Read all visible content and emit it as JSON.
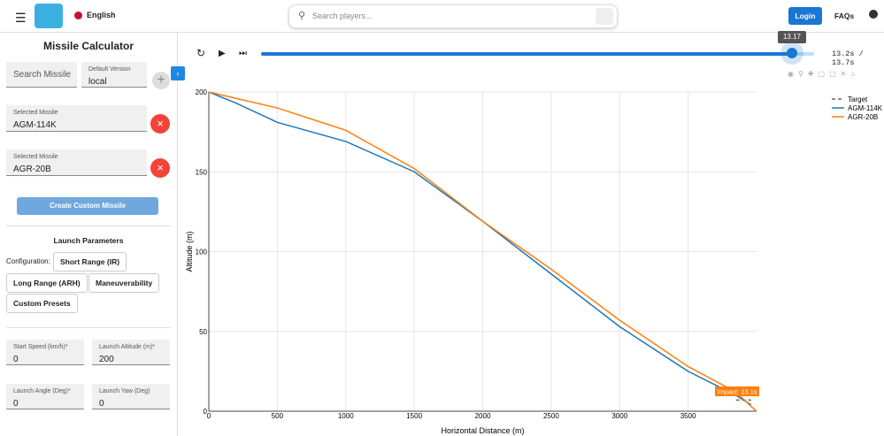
{
  "header": {
    "language": "English",
    "search_placeholder": "Search players...",
    "login": "Login",
    "faqs": "FAQs"
  },
  "sidebar": {
    "title": "Missile Calculator",
    "search_missile": "Search Missile",
    "default_version_label": "Default Version",
    "default_version": "local",
    "selected": [
      {
        "label": "Selected Missile",
        "value": "AGM-114K"
      },
      {
        "label": "Selected Missile",
        "value": "AGR-20B"
      }
    ],
    "create_button": "Create Custom Missile",
    "launch_title": "Launch Parameters",
    "configuration_label": "Configuration:",
    "presets": [
      "Short Range (IR)",
      "Long Range (ARH)",
      "Maneuverability",
      "Custom Presets"
    ],
    "fields": [
      {
        "label": "Start Speed (km/h)*",
        "value": "0"
      },
      {
        "label": "Launch Altitude (m)*",
        "value": "200"
      },
      {
        "label": "Launch Angle (Deg)*",
        "value": "0"
      },
      {
        "label": "Launch Yaw (Deg)",
        "value": "0"
      }
    ]
  },
  "player": {
    "tooltip": 13.17,
    "time": "13.2s / 13.7s"
  },
  "chart_data": {
    "type": "line",
    "x_label": "Horizontal Distance (m)",
    "y_label": "Altitude (m)",
    "annotation": "Impact: 13.1s",
    "x": [
      0,
      200,
      500,
      1000,
      1500,
      2000,
      2500,
      3000,
      3500,
      3850,
      3960,
      4000
    ],
    "series": [
      {
        "name": "Target",
        "color": "#666666",
        "dash": true,
        "values": [
          null,
          null,
          null,
          null,
          null,
          null,
          null,
          null,
          null,
          7,
          7,
          null
        ]
      },
      {
        "name": "AGM-114K",
        "color": "#1f77b4",
        "values": [
          200,
          193,
          181,
          169,
          150,
          119,
          86,
          53,
          25,
          10,
          4,
          null
        ]
      },
      {
        "name": "AGR-20B",
        "color": "#ff7f0e",
        "values": [
          200,
          196,
          190,
          176,
          152,
          119,
          89,
          57,
          28,
          12,
          3,
          0
        ]
      }
    ],
    "xlim": [
      0,
      4000
    ],
    "ylim": [
      0,
      200
    ],
    "xticks": [
      0,
      500,
      1000,
      1500,
      2000,
      2500,
      3000,
      3500
    ],
    "yticks": [
      0,
      50,
      100,
      150,
      200
    ],
    "grid": true
  }
}
